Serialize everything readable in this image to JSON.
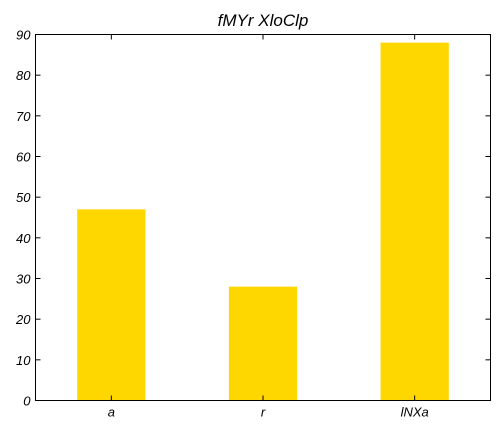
{
  "chart_data": {
    "type": "bar",
    "title": "fMYr XloClp",
    "categories": [
      "a",
      "r",
      "lNXa"
    ],
    "values": [
      47,
      28,
      88
    ],
    "xlabel": "",
    "ylabel": "",
    "ylim": [
      0,
      90
    ],
    "yticks": [
      0,
      10,
      20,
      30,
      40,
      50,
      60,
      70,
      80,
      90
    ],
    "grid": false,
    "bar_color": "#ffd700"
  }
}
